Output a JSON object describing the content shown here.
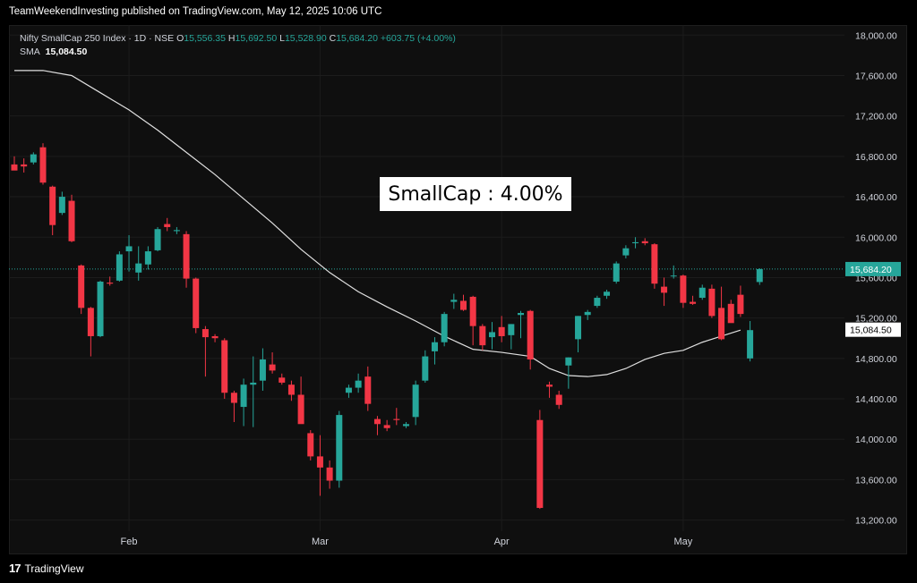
{
  "header": {
    "published": "TeamWeekendInvesting published on TradingView.com, May 12, 2025 10:06 UTC"
  },
  "legend": {
    "symbol": "Nifty SmallCap 250 Index · 1D · NSE",
    "o_label": "O",
    "o_value": "15,556.35",
    "h_label": "H",
    "h_value": "15,692.50",
    "l_label": "L",
    "l_value": "15,528.90",
    "c_label": "C",
    "c_value": "15,684.20",
    "change": "+603.75 (+4.00%)",
    "sma_label": "SMA",
    "sma_value": "15,084.50"
  },
  "annotation": "SmallCap : 4.00%",
  "footer": {
    "brand": "TradingView"
  },
  "colors": {
    "up": "#26a69a",
    "down": "#f23645",
    "sma": "#e0e0e0",
    "grid": "#1c1c1c"
  },
  "chart_data": {
    "type": "candlestick",
    "y_ticks": [
      "18,000.00",
      "17,600.00",
      "17,200.00",
      "16,800.00",
      "16,400.00",
      "16,000.00",
      "15,600.00",
      "15,200.00",
      "14,800.00",
      "14,400.00",
      "14,000.00",
      "13,600.00",
      "13,200.00"
    ],
    "y_tick_values": [
      18000,
      17600,
      17200,
      16800,
      16400,
      16000,
      15600,
      15200,
      14800,
      14400,
      14000,
      13600,
      13200
    ],
    "ylim": [
      12860,
      18100
    ],
    "x_labels": [
      {
        "label": "Feb",
        "index": 12
      },
      {
        "label": "Mar",
        "index": 32
      },
      {
        "label": "Apr",
        "index": 51
      },
      {
        "label": "May",
        "index": 70
      }
    ],
    "last_price": {
      "value": 15684.2,
      "label": "15,684.20"
    },
    "sma_price": {
      "value": 15084.5,
      "label": 15084.5,
      "text": "15,084.50"
    },
    "candles": [
      [
        16720,
        16800,
        16680,
        16660
      ],
      [
        16720,
        16780,
        16640,
        16700
      ],
      [
        16740,
        16840,
        16720,
        16820
      ],
      [
        16890,
        16930,
        16520,
        16540
      ],
      [
        16500,
        16510,
        16020,
        16120
      ],
      [
        16240,
        16450,
        16220,
        16400
      ],
      [
        16360,
        16420,
        15950,
        15960
      ],
      [
        15720,
        15730,
        15240,
        15300
      ],
      [
        15300,
        15310,
        14820,
        15020
      ],
      [
        15020,
        15570,
        15010,
        15560
      ],
      [
        15550,
        15610,
        15520,
        15540
      ],
      [
        15570,
        15860,
        15560,
        15830
      ],
      [
        15860,
        16020,
        15660,
        15910
      ],
      [
        15650,
        15910,
        15570,
        15740
      ],
      [
        15730,
        15910,
        15680,
        15860
      ],
      [
        15870,
        16100,
        15860,
        16080
      ],
      [
        16130,
        16190,
        16060,
        16100
      ],
      [
        16060,
        16100,
        16030,
        16070
      ],
      [
        16030,
        16060,
        15500,
        15590
      ],
      [
        15590,
        15600,
        15050,
        15100
      ],
      [
        15090,
        15120,
        14620,
        15010
      ],
      [
        15020,
        15040,
        14960,
        15000
      ],
      [
        14980,
        15000,
        14400,
        14460
      ],
      [
        14460,
        14480,
        14170,
        14360
      ],
      [
        14320,
        14600,
        14130,
        14540
      ],
      [
        14540,
        14820,
        14120,
        14560
      ],
      [
        14580,
        14900,
        14480,
        14790
      ],
      [
        14740,
        14860,
        14650,
        14680
      ],
      [
        14610,
        14650,
        14540,
        14560
      ],
      [
        14540,
        14580,
        14380,
        14440
      ],
      [
        14440,
        14620,
        14180,
        14150
      ],
      [
        14060,
        14090,
        13790,
        13830
      ],
      [
        13830,
        14040,
        13440,
        13720
      ],
      [
        13720,
        13790,
        13510,
        13590
      ],
      [
        13590,
        14280,
        13520,
        14240
      ],
      [
        14460,
        14540,
        14410,
        14510
      ],
      [
        14510,
        14650,
        14460,
        14580
      ],
      [
        14620,
        14720,
        14280,
        14350
      ],
      [
        14200,
        14230,
        14040,
        14150
      ],
      [
        14140,
        14190,
        14080,
        14110
      ],
      [
        14200,
        14310,
        14140,
        14190
      ],
      [
        14130,
        14170,
        14110,
        14150
      ],
      [
        14220,
        14580,
        14140,
        14540
      ],
      [
        14580,
        14880,
        14560,
        14820
      ],
      [
        14870,
        15010,
        14740,
        14960
      ],
      [
        14960,
        15260,
        14920,
        15240
      ],
      [
        15360,
        15440,
        15290,
        15380
      ],
      [
        15370,
        15430,
        15270,
        15280
      ],
      [
        15410,
        15420,
        14930,
        15120
      ],
      [
        15120,
        15140,
        14880,
        14930
      ],
      [
        15010,
        15160,
        14890,
        15060
      ],
      [
        15110,
        15220,
        14960,
        15020
      ],
      [
        15030,
        15140,
        14890,
        15140
      ],
      [
        15230,
        15270,
        15000,
        15250
      ],
      [
        15270,
        15280,
        14690,
        14790
      ],
      [
        14190,
        14290,
        13310,
        13320
      ],
      [
        14540,
        14570,
        14410,
        14520
      ],
      [
        14440,
        14480,
        14300,
        14340
      ],
      [
        14730,
        14810,
        14500,
        14810
      ],
      [
        14990,
        15220,
        14860,
        15220
      ],
      [
        15230,
        15280,
        15180,
        15260
      ],
      [
        15320,
        15420,
        15300,
        15400
      ],
      [
        15420,
        15480,
        15390,
        15460
      ],
      [
        15560,
        15760,
        15540,
        15740
      ],
      [
        15820,
        15920,
        15790,
        15890
      ],
      [
        15940,
        16000,
        15890,
        15950
      ],
      [
        15960,
        15990,
        15920,
        15940
      ],
      [
        15930,
        15940,
        15490,
        15540
      ],
      [
        15510,
        15600,
        15320,
        15450
      ],
      [
        15620,
        15720,
        15590,
        15620
      ],
      [
        15620,
        15630,
        15300,
        15350
      ],
      [
        15360,
        15420,
        15330,
        15340
      ],
      [
        15400,
        15530,
        15380,
        15500
      ],
      [
        15490,
        15530,
        15200,
        15220
      ],
      [
        15300,
        15510,
        14980,
        14990
      ],
      [
        15340,
        15380,
        15180,
        15150
      ],
      [
        15430,
        15520,
        15210,
        15240
      ],
      [
        14800,
        15170,
        14770,
        15080
      ],
      [
        15556,
        15692,
        15528,
        15684
      ]
    ],
    "sma": [
      [
        0,
        17650
      ],
      [
        3,
        17650
      ],
      [
        6,
        17600
      ],
      [
        9,
        17430
      ],
      [
        12,
        17260
      ],
      [
        15,
        17060
      ],
      [
        18,
        16840
      ],
      [
        21,
        16620
      ],
      [
        24,
        16380
      ],
      [
        27,
        16140
      ],
      [
        30,
        15880
      ],
      [
        33,
        15650
      ],
      [
        36,
        15460
      ],
      [
        39,
        15310
      ],
      [
        42,
        15170
      ],
      [
        45,
        15020
      ],
      [
        48,
        14890
      ],
      [
        51,
        14860
      ],
      [
        54,
        14820
      ],
      [
        56,
        14700
      ],
      [
        58,
        14630
      ],
      [
        60,
        14620
      ],
      [
        62,
        14640
      ],
      [
        64,
        14700
      ],
      [
        66,
        14790
      ],
      [
        68,
        14850
      ],
      [
        70,
        14880
      ],
      [
        72,
        14960
      ],
      [
        74,
        15020
      ],
      [
        76,
        15080
      ]
    ]
  }
}
